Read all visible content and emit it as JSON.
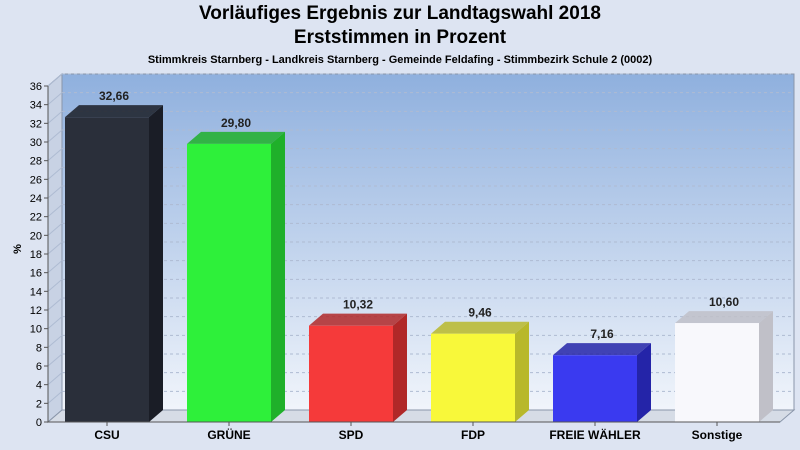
{
  "header": {
    "title_line1": "Vorläufiges Ergebnis zur Landtagswahl 2018",
    "title_line2": "Erststimmen in Prozent",
    "subtitle": "Stimmkreis Starnberg - Landkreis Starnberg - Gemeinde Feldafing - Stimmbezirk Schule 2 (0002)"
  },
  "chart_data": {
    "type": "bar",
    "title": "Vorläufiges Ergebnis zur Landtagswahl 2018 Erststimmen in Prozent",
    "subtitle": "Stimmkreis Starnberg - Landkreis Starnberg - Gemeinde Feldafing - Stimmbezirk Schule 2 (0002)",
    "categories": [
      "CSU",
      "GRÜNE",
      "SPD",
      "FDP",
      "FREIE WÄHLER",
      "Sonstige"
    ],
    "values": [
      32.66,
      29.8,
      10.32,
      9.46,
      7.16,
      10.6
    ],
    "value_labels": [
      "32,66",
      "29,80",
      "10,32",
      "9,46",
      "7,16",
      "10,60"
    ],
    "colors": [
      "#2a2f3a",
      "#2ef03a",
      "#f53a3a",
      "#f8f83a",
      "#3a3af0",
      "#f8f8fc"
    ],
    "side_colors": [
      "#1a1d26",
      "#1fb02a",
      "#b02828",
      "#b8b82a",
      "#2424a8",
      "#c0c0c8"
    ],
    "ylabel": "%",
    "ylim": [
      0,
      36
    ],
    "yticks": [
      0,
      2,
      4,
      6,
      8,
      10,
      12,
      14,
      16,
      18,
      20,
      22,
      24,
      26,
      28,
      30,
      32,
      34,
      36
    ],
    "grid": true
  }
}
